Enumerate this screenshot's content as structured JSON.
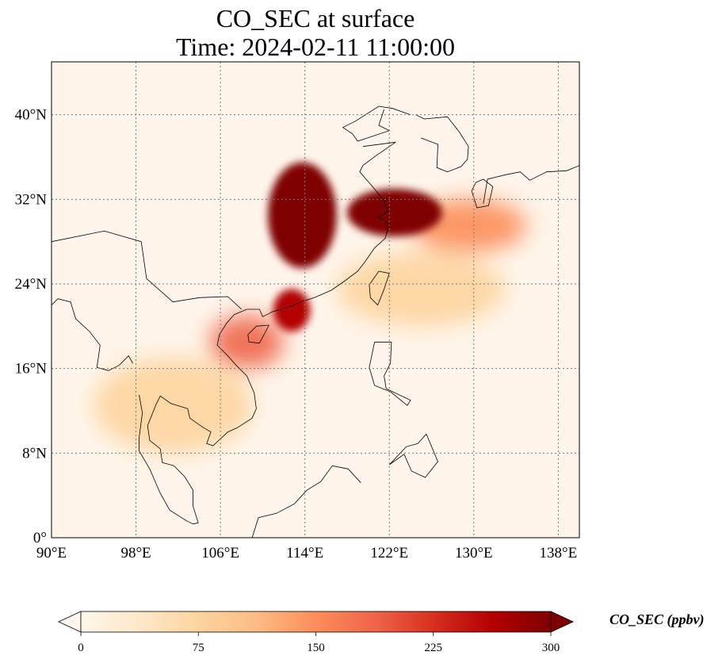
{
  "title": {
    "line1": "CO_SEC at surface",
    "line2": "Time: 2024-02-11 11:00:00"
  },
  "map": {
    "projection": "PlateCarree",
    "lon_range": [
      90,
      140
    ],
    "lat_range": [
      0,
      45
    ],
    "gridlines": "dotted",
    "x_ticks": [
      90,
      98,
      106,
      114,
      122,
      130,
      138
    ],
    "x_tick_labels": [
      "90°E",
      "98°E",
      "106°E",
      "114°E",
      "122°E",
      "130°E",
      "138°E"
    ],
    "y_ticks": [
      0,
      8,
      16,
      24,
      32,
      40
    ],
    "y_tick_labels": [
      "0°",
      "8°N",
      "16°N",
      "24°N",
      "32°N",
      "40°N"
    ]
  },
  "colorbar": {
    "label": "CO_SEC (ppbv)",
    "colormap": "OrRd",
    "range": [
      0,
      300
    ],
    "extend": "both",
    "ticks": [
      0,
      75,
      150,
      225,
      300
    ],
    "tick_labels": [
      "0",
      "75",
      "150",
      "225",
      "300"
    ],
    "colors": [
      "#fff7ec",
      "#fee8c8",
      "#fdd49e",
      "#fdbb84",
      "#fc8d59",
      "#ef6548",
      "#d7301f",
      "#b30000",
      "#7f0000"
    ]
  },
  "field": {
    "variable": "CO_SEC",
    "units": "ppbv",
    "description_of_features": "surface CO concentration field",
    "hotspots": [
      {
        "region": "North China Plain",
        "lon": [
          110.5,
          117
        ],
        "lat": [
          25.5,
          35.5
        ],
        "level_ppbv": 300
      },
      {
        "region": "Yangtze River Delta / East China Sea",
        "lon": [
          118,
          127
        ],
        "lat": [
          28.5,
          33
        ],
        "level_ppbv": 300
      },
      {
        "region": "Pearl River Delta",
        "lon": [
          111,
          114.5
        ],
        "lat": [
          19.5,
          23.5
        ],
        "level_ppbv": 260
      },
      {
        "region": "Gulf of Tonkin plume",
        "lon": [
          105,
          112
        ],
        "lat": [
          16,
          21
        ],
        "level_ppbv": 170
      },
      {
        "region": "Indochina",
        "lon": [
          94,
          109
        ],
        "lat": [
          8,
          17
        ],
        "level_ppbv": 80
      },
      {
        "region": "Pacific outflow plume",
        "lon": [
          124,
          135
        ],
        "lat": [
          27,
          32
        ],
        "level_ppbv": 150
      },
      {
        "region": "Taiwan Strait outflow",
        "lon": [
          117,
          133
        ],
        "lat": [
          20,
          27
        ],
        "level_ppbv": 60
      }
    ]
  }
}
